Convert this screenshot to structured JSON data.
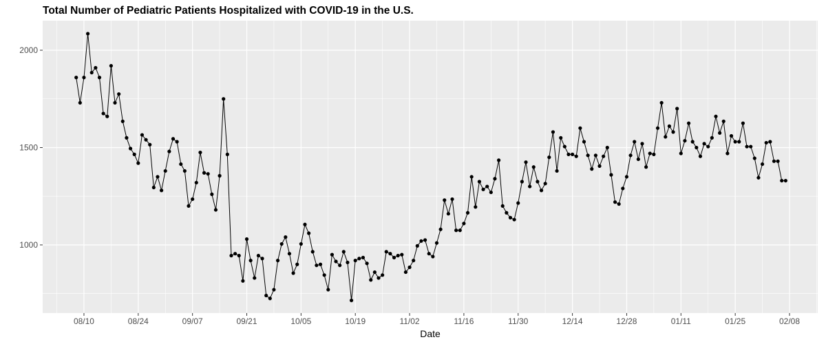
{
  "chart_data": {
    "type": "line",
    "title": "Total Number of Pediatric Patients Hospitalized with COVID-19 in the U.S.",
    "xlabel": "Date",
    "ylabel": "",
    "x_start": "08/08",
    "x_step_days": 1,
    "x_ticks": [
      "08/10",
      "08/24",
      "09/07",
      "09/21",
      "10/05",
      "10/19",
      "11/02",
      "11/16",
      "11/30",
      "12/14",
      "12/28",
      "01/11",
      "01/25",
      "02/08"
    ],
    "x_tick_day_offsets": [
      2,
      16,
      30,
      44,
      58,
      72,
      86,
      100,
      114,
      128,
      142,
      156,
      170,
      184
    ],
    "y_ticks": [
      1000,
      1500,
      2000
    ],
    "ylim": [
      650,
      2152
    ],
    "grid": true,
    "markers": true,
    "colors": {
      "line": "#000000",
      "panel": "#ebebeb",
      "grid": "#ffffff"
    },
    "values": [
      1860,
      1730,
      1860,
      2085,
      1885,
      1910,
      1860,
      1675,
      1660,
      1920,
      1730,
      1775,
      1635,
      1550,
      1495,
      1465,
      1420,
      1565,
      1540,
      1515,
      1295,
      1350,
      1280,
      1380,
      1480,
      1545,
      1530,
      1415,
      1380,
      1200,
      1235,
      1320,
      1475,
      1370,
      1365,
      1260,
      1180,
      1355,
      1750,
      1465,
      945,
      955,
      945,
      815,
      1030,
      920,
      830,
      945,
      930,
      740,
      725,
      770,
      920,
      1005,
      1040,
      955,
      855,
      900,
      1005,
      1105,
      1060,
      965,
      895,
      900,
      845,
      770,
      950,
      915,
      895,
      965,
      910,
      715,
      920,
      930,
      935,
      905,
      820,
      860,
      830,
      845,
      965,
      955,
      935,
      945,
      950,
      860,
      885,
      920,
      995,
      1020,
      1025,
      955,
      940,
      1010,
      1080,
      1230,
      1160,
      1235,
      1075,
      1075,
      1110,
      1165,
      1350,
      1195,
      1325,
      1285,
      1300,
      1270,
      1340,
      1435,
      1200,
      1165,
      1140,
      1130,
      1215,
      1325,
      1425,
      1300,
      1400,
      1325,
      1280,
      1315,
      1450,
      1580,
      1380,
      1550,
      1505,
      1465,
      1465,
      1455,
      1600,
      1530,
      1460,
      1390,
      1460,
      1405,
      1455,
      1500,
      1360,
      1220,
      1210,
      1290,
      1350,
      1460,
      1530,
      1440,
      1520,
      1400,
      1470,
      1465,
      1600,
      1730,
      1555,
      1610,
      1580,
      1700,
      1470,
      1535,
      1625,
      1530,
      1500,
      1455,
      1520,
      1505,
      1550,
      1660,
      1575,
      1635,
      1470,
      1560,
      1530,
      1530,
      1625,
      1505,
      1505,
      1445,
      1345,
      1415,
      1525,
      1530,
      1430,
      1430,
      1330,
      1330
    ]
  }
}
